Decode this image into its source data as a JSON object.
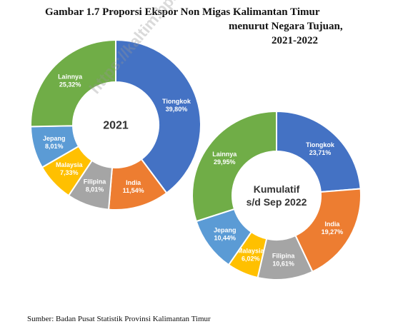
{
  "title_lines": [
    "Gambar 1.7 Proporsi Ekspor Non Migas Kalimantan Timur",
    "menurut Negara Tujuan,",
    "2021-2022"
  ],
  "watermark": "https://kaltim.bps.go.id",
  "source": "Sumber: Badan Pusat Statistik Provinsi Kalimantan Timur",
  "colors": {
    "Tiongkok": "#4472C4",
    "India": "#ED7D31",
    "Filipina": "#A5A5A5",
    "Malaysia": "#FFC000",
    "Jepang": "#5B9BD5",
    "Lainnya": "#70AD47"
  },
  "chart_data": [
    {
      "type": "pie",
      "center_label": [
        "2021"
      ],
      "slices": [
        {
          "label": "Tiongkok",
          "value": 39.8,
          "text": "39,80%"
        },
        {
          "label": "India",
          "value": 11.54,
          "text": "11,54%"
        },
        {
          "label": "Filipina",
          "value": 8.01,
          "text": "8,01%"
        },
        {
          "label": "Malaysia",
          "value": 7.33,
          "text": "7,33%"
        },
        {
          "label": "Jepang",
          "value": 8.01,
          "text": "8,01%"
        },
        {
          "label": "Lainnya",
          "value": 25.32,
          "text": "25,32%"
        }
      ]
    },
    {
      "type": "pie",
      "center_label": [
        "Kumulatif",
        "s/d Sep 2022"
      ],
      "slices": [
        {
          "label": "Tiongkok",
          "value": 23.71,
          "text": "23,71%"
        },
        {
          "label": "India",
          "value": 19.27,
          "text": "19,27%"
        },
        {
          "label": "Filipina",
          "value": 10.61,
          "text": "10,61%"
        },
        {
          "label": "Malaysia",
          "value": 6.02,
          "text": "6,02%"
        },
        {
          "label": "Jepang",
          "value": 10.44,
          "text": "10,44%"
        },
        {
          "label": "Lainnya",
          "value": 29.95,
          "text": "29,95%"
        }
      ]
    }
  ]
}
